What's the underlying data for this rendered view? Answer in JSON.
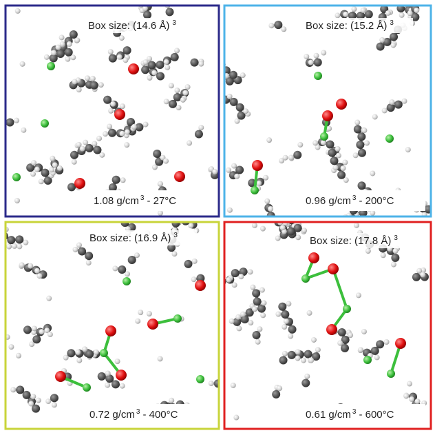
{
  "panels": [
    {
      "box_size": "Box size: (14.6 Å)",
      "box_exp": "3",
      "density": "1.08 g/cm",
      "density_exp": "3",
      "temperature": "- 27°C"
    },
    {
      "box_size": "Box size: (15.2 Å)",
      "box_exp": "3",
      "density": "0.96 g/cm",
      "density_exp": "3",
      "temperature": "- 200°C"
    },
    {
      "box_size": "Box size: (16.9 Å)",
      "box_exp": "3",
      "density": "0.72 g/cm",
      "density_exp": "3",
      "temperature": "- 400°C"
    },
    {
      "box_size": "Box size: (17.8 Å)",
      "box_exp": "3",
      "density": "0.61 g/cm",
      "density_exp": "3",
      "temperature": "- 600°C"
    }
  ]
}
